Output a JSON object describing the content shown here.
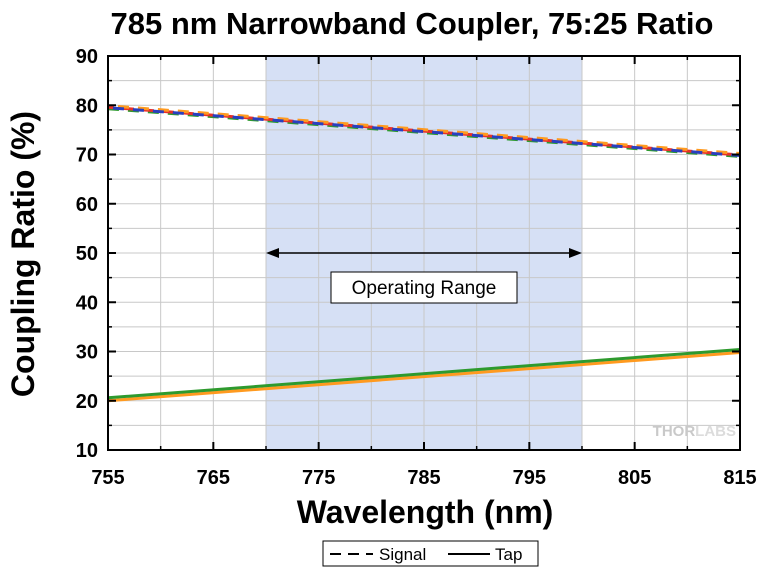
{
  "chart_data": {
    "type": "line",
    "title": "785 nm Narrowband Coupler, 75:25 Ratio",
    "xlabel": "Wavelength (nm)",
    "ylabel": "Coupling Ratio (%)",
    "xlim": [
      755,
      815
    ],
    "ylim": [
      10,
      90
    ],
    "xticks": [
      755,
      765,
      775,
      785,
      795,
      805,
      815
    ],
    "yticks": [
      10,
      20,
      30,
      40,
      50,
      60,
      70,
      80,
      90
    ],
    "grid": true,
    "shaded_region": {
      "x": [
        770,
        800
      ],
      "color": "#d6e0f5"
    },
    "annotation": {
      "text": "Operating Range",
      "x_range": [
        770,
        800
      ],
      "y": 50
    },
    "watermark": "THORLABS",
    "legend": {
      "placement": "bottom",
      "entries": [
        {
          "label": "Signal",
          "style": "dashed"
        },
        {
          "label": "Tap",
          "style": "solid"
        }
      ]
    },
    "series": [
      {
        "group": "Signal",
        "style": "dashed",
        "color": "#2e9a2e",
        "x": [
          755,
          815
        ],
        "y": [
          79.3,
          69.6
        ]
      },
      {
        "group": "Signal",
        "style": "dashed",
        "color": "#e8312a",
        "x": [
          755,
          815
        ],
        "y": [
          79.6,
          69.9
        ]
      },
      {
        "group": "Signal",
        "style": "dashed",
        "color": "#ff9a1f",
        "x": [
          755,
          815
        ],
        "y": [
          79.9,
          70.2
        ]
      },
      {
        "group": "Signal",
        "style": "dashed",
        "color": "#2a3fbf",
        "x": [
          755,
          815
        ],
        "y": [
          79.5,
          69.8
        ]
      },
      {
        "group": "Tap",
        "style": "solid",
        "color": "#ff9a1f",
        "x": [
          755,
          815
        ],
        "y": [
          20.0,
          29.8
        ]
      },
      {
        "group": "Tap",
        "style": "solid",
        "color": "#2e9a2e",
        "x": [
          755,
          815
        ],
        "y": [
          20.6,
          30.4
        ]
      }
    ]
  }
}
